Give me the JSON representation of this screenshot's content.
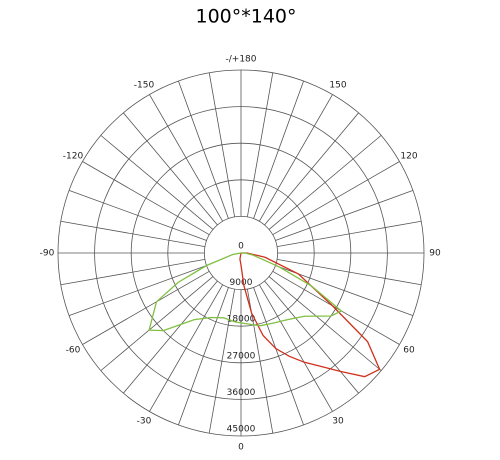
{
  "chart_data": {
    "type": "polar",
    "title": "100°*140°",
    "rlim": [
      0,
      45000
    ],
    "rticks": [
      0,
      9000,
      18000,
      27000,
      36000,
      45000
    ],
    "angle_ticks": [
      0,
      30,
      60,
      90,
      120,
      150,
      {
        "value": 180,
        "label": "-/+180"
      },
      -150,
      -120,
      -90,
      -60,
      -30
    ],
    "series": [
      {
        "color": "#d0301c",
        "angles": [
          -10,
          0,
          5,
          10,
          15,
          20,
          25,
          30,
          35,
          40,
          45,
          50,
          55,
          60,
          70,
          80,
          90
        ],
        "values": [
          1500,
          3000,
          8000,
          15000,
          21000,
          25000,
          28000,
          31000,
          34000,
          38000,
          43000,
          44500,
          38000,
          26000,
          15000,
          6000,
          1500
        ]
      },
      {
        "color": "#80c040",
        "angles": [
          -80,
          -70,
          -65,
          -60,
          -50,
          -45,
          -35,
          -25,
          -15,
          -5,
          5,
          15,
          25,
          35,
          45,
          55,
          60,
          65,
          70,
          80,
          90
        ],
        "values": [
          2000,
          9000,
          17000,
          24000,
          29500,
          27000,
          20000,
          17500,
          16500,
          17000,
          17500,
          18500,
          19000,
          20000,
          22000,
          27000,
          28500,
          19000,
          10000,
          3000,
          1000
        ]
      }
    ]
  }
}
